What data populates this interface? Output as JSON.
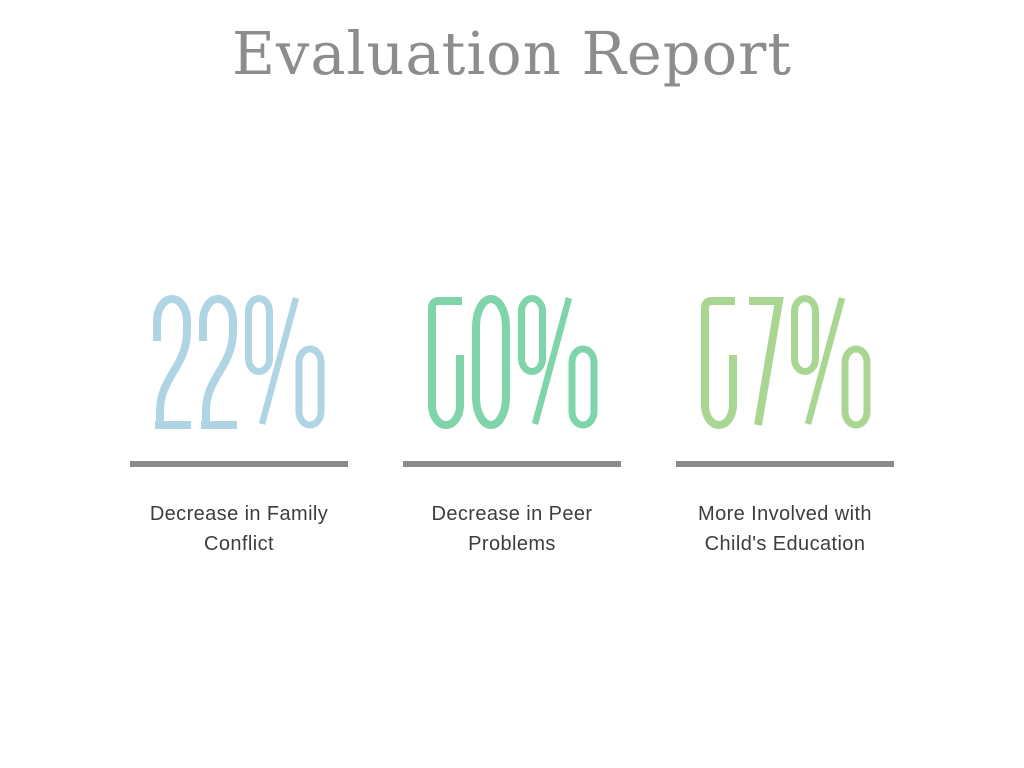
{
  "page": {
    "title": "Evaluation Report"
  },
  "stats": [
    {
      "value": "22%",
      "label": "Decrease in Family Conflict",
      "color": "#afd5e5"
    },
    {
      "value": "50%",
      "label": "Decrease in Peer Problems",
      "color": "#7fd5a9"
    },
    {
      "value": "57%",
      "label": "More Involved with Child's Education",
      "color": "#a9d793"
    }
  ],
  "colors": {
    "title": "#8d8d8d",
    "divider": "#8b8b8b",
    "label": "#3d3d3d",
    "background": "#ffffff"
  },
  "chart_data": {
    "type": "table",
    "title": "Evaluation Report",
    "categories": [
      "Decrease in Family Conflict",
      "Decrease in Peer Problems",
      "More Involved with Child's Education"
    ],
    "values": [
      22,
      50,
      57
    ],
    "unit": "percent",
    "series_colors": [
      "#afd5e5",
      "#7fd5a9",
      "#a9d793"
    ],
    "layout": "three stat cards in a row, big number above gray underline above caption"
  }
}
